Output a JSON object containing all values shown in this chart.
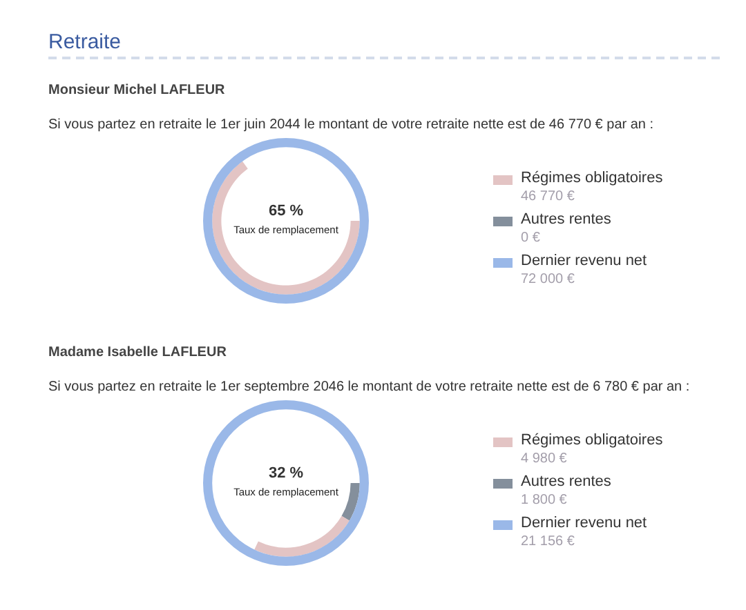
{
  "chart_data": [
    {
      "type": "other",
      "title": "Monsieur Michel LAFLEUR",
      "subtitle": "Si vous partez en retraite le 1er juin 2044 le montant de votre retraite nette est de 46 770 € par an :",
      "annotations": [
        "Retraite",
        "65 %",
        "Taux de remplacement"
      ],
      "categories": [
        "Régimes obligatoires",
        "Autres rentes",
        "Dernier revenu net"
      ],
      "values": [
        46770,
        0,
        72000
      ],
      "colors": [
        "#e3c4c4",
        "#848f9c",
        "#9ab8e8"
      ],
      "value_labels": [
        "46 770 €",
        "0 €",
        "72 000 €"
      ]
    },
    {
      "type": "other",
      "title": "Madame Isabelle LAFLEUR",
      "subtitle": "Si vous partez en retraite le 1er septembre 2046 le montant de votre retraite nette est de 6 780 € par an :",
      "annotations": [
        "32 %",
        "Taux de remplacement"
      ],
      "categories": [
        "Régimes obligatoires",
        "Autres rentes",
        "Dernier revenu net"
      ],
      "values": [
        4980,
        1800,
        21156
      ],
      "colors": [
        "#e3c4c4",
        "#848f9c",
        "#9ab8e8"
      ],
      "value_labels": [
        "4 980 €",
        "1 800 €",
        "21 156 €"
      ]
    }
  ]
}
